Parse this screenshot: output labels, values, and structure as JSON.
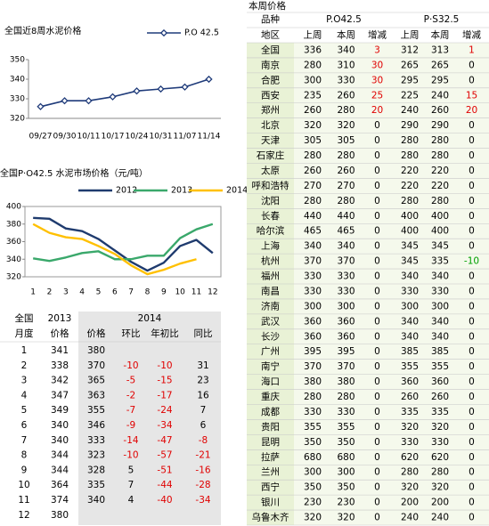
{
  "chart_data": [
    {
      "type": "line",
      "title": "全国近8周水泥价格",
      "categories": [
        "09/27",
        "09/30",
        "10/11",
        "10/17",
        "10/24",
        "10/31",
        "11/07",
        "11/14"
      ],
      "series": [
        {
          "name": "P.O 42.5",
          "color": "#1f3b7a",
          "values": [
            326,
            329,
            329,
            331,
            334,
            335,
            336,
            340
          ]
        }
      ],
      "ylim": [
        320,
        350
      ],
      "yticks": [
        320,
        330,
        340,
        350
      ],
      "markers": true,
      "legend": "top-right"
    },
    {
      "type": "line",
      "title": "全国P·O42.5 水泥市场价格（元/吨）",
      "categories": [
        "1",
        "2",
        "3",
        "4",
        "5",
        "6",
        "7",
        "8",
        "9",
        "10",
        "11",
        "12"
      ],
      "series": [
        {
          "name": "2012",
          "color": "#1f3b6e",
          "values": [
            387,
            386,
            375,
            372,
            363,
            350,
            337,
            327,
            336,
            355,
            362,
            347
          ]
        },
        {
          "name": "2013",
          "color": "#3aa86b",
          "values": [
            341,
            338,
            342,
            347,
            349,
            340,
            340,
            344,
            344,
            364,
            374,
            380
          ]
        },
        {
          "name": "2014",
          "color": "#ffc000",
          "values": [
            380,
            370,
            365,
            363,
            355,
            346,
            333,
            323,
            328,
            335,
            340,
            null
          ]
        }
      ],
      "ylim": [
        320,
        400
      ],
      "yticks": [
        320,
        340,
        360,
        380,
        400
      ],
      "markers": false,
      "legend": "top"
    }
  ],
  "monthly_table": {
    "header": [
      [
        "全国",
        "2013",
        "2014"
      ],
      [
        "月度",
        "价格",
        "价格",
        "环比",
        "年初比",
        "同比"
      ]
    ],
    "rows": [
      [
        1,
        341,
        380
      ],
      [
        2,
        338,
        370,
        -10,
        -10,
        31
      ],
      [
        3,
        342,
        365,
        -5,
        -15,
        23
      ],
      [
        4,
        347,
        363,
        -2,
        -17,
        16
      ],
      [
        5,
        349,
        355,
        -7,
        -24,
        7
      ],
      [
        6,
        340,
        346,
        -9,
        -34,
        6
      ],
      [
        7,
        340,
        333,
        -14,
        -47,
        -8
      ],
      [
        8,
        344,
        323,
        -10,
        -57,
        -21
      ],
      [
        9,
        344,
        328,
        5,
        -51,
        -16
      ],
      [
        10,
        364,
        335,
        7,
        -44,
        -28
      ],
      [
        11,
        374,
        340,
        4,
        -40,
        -34
      ],
      [
        12,
        380
      ]
    ]
  },
  "price_table": {
    "title": "本周价格",
    "header": [
      [
        "品种",
        "P.O42.5",
        "P·S32.5"
      ],
      [
        "地区",
        "上周",
        "本周",
        "增减",
        "上周",
        "本周",
        "增减"
      ]
    ],
    "rows": [
      [
        "全国",
        336,
        340,
        3,
        312,
        313,
        1
      ],
      [
        "南京",
        280,
        310,
        30,
        265,
        265,
        0
      ],
      [
        "合肥",
        300,
        330,
        30,
        295,
        295,
        0
      ],
      [
        "西安",
        235,
        260,
        25,
        225,
        240,
        15
      ],
      [
        "郑州",
        260,
        280,
        20,
        240,
        260,
        20
      ],
      [
        "北京",
        320,
        320,
        0,
        290,
        290,
        0
      ],
      [
        "天津",
        305,
        305,
        0,
        280,
        280,
        0
      ],
      [
        "石家庄",
        280,
        280,
        0,
        280,
        280,
        0
      ],
      [
        "太原",
        260,
        260,
        0,
        220,
        220,
        0
      ],
      [
        "呼和浩特",
        270,
        270,
        0,
        220,
        220,
        0
      ],
      [
        "沈阳",
        280,
        280,
        0,
        280,
        280,
        0
      ],
      [
        "长春",
        440,
        440,
        0,
        400,
        400,
        0
      ],
      [
        "哈尔滨",
        465,
        465,
        0,
        400,
        400,
        0
      ],
      [
        "上海",
        340,
        340,
        0,
        345,
        345,
        0
      ],
      [
        "杭州",
        370,
        370,
        0,
        345,
        335,
        -10
      ],
      [
        "福州",
        330,
        330,
        0,
        340,
        340,
        0
      ],
      [
        "南昌",
        330,
        330,
        0,
        330,
        330,
        0
      ],
      [
        "济南",
        300,
        300,
        0,
        300,
        300,
        0
      ],
      [
        "武汉",
        360,
        360,
        0,
        340,
        340,
        0
      ],
      [
        "长沙",
        360,
        360,
        0,
        340,
        340,
        0
      ],
      [
        "广州",
        395,
        395,
        0,
        385,
        385,
        0
      ],
      [
        "南宁",
        370,
        370,
        0,
        355,
        355,
        0
      ],
      [
        "海口",
        380,
        380,
        0,
        360,
        360,
        0
      ],
      [
        "重庆",
        280,
        280,
        0,
        260,
        260,
        0
      ],
      [
        "成都",
        330,
        330,
        0,
        335,
        335,
        0
      ],
      [
        "贵阳",
        355,
        355,
        0,
        320,
        320,
        0
      ],
      [
        "昆明",
        350,
        350,
        0,
        330,
        330,
        0
      ],
      [
        "拉萨",
        680,
        680,
        0,
        620,
        620,
        0
      ],
      [
        "兰州",
        300,
        300,
        0,
        280,
        280,
        0
      ],
      [
        "西宁",
        350,
        350,
        0,
        320,
        320,
        0
      ],
      [
        "银川",
        230,
        230,
        0,
        200,
        200,
        0
      ],
      [
        "乌鲁木齐",
        320,
        320,
        0,
        240,
        240,
        0
      ]
    ]
  }
}
